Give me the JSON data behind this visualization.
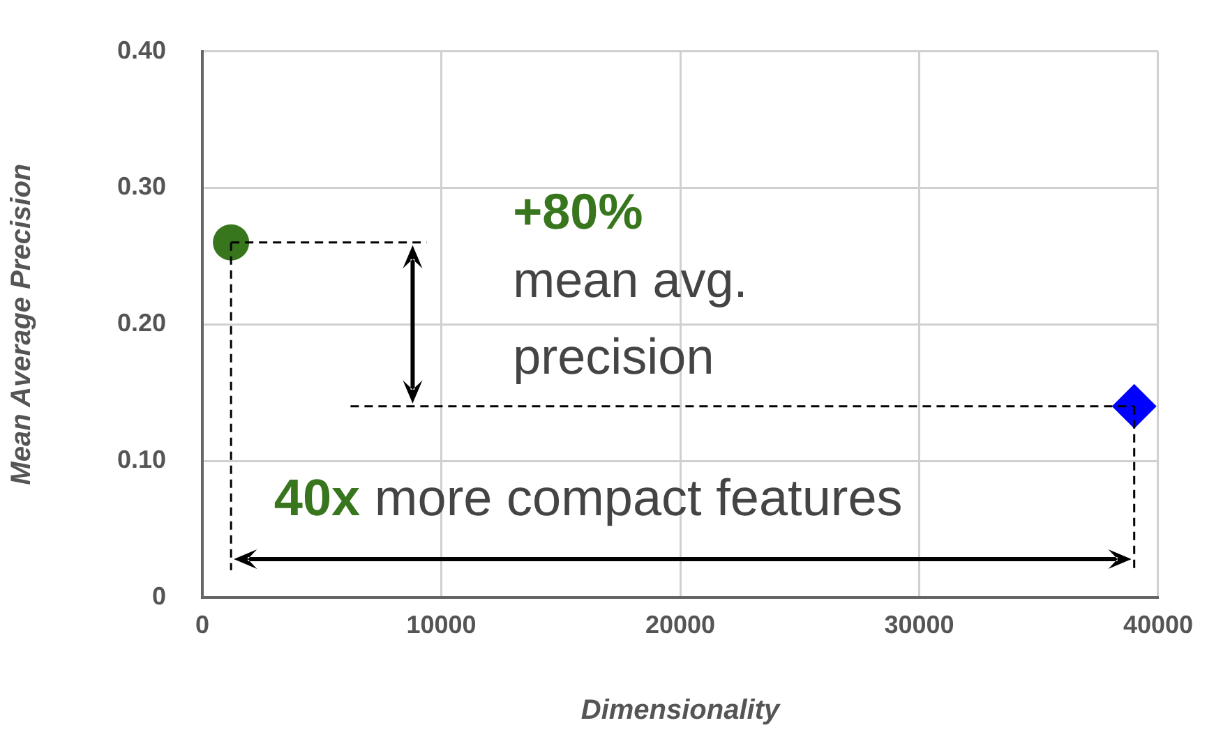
{
  "chart_data": {
    "type": "scatter",
    "xlabel": "Dimensionality",
    "ylabel": "Mean Average Precision",
    "series": [
      {
        "color": "#38761d",
        "x": [
          1200
        ],
        "values": [
          0.26
        ],
        "marker": "circle"
      },
      {
        "color": "#0000ff",
        "x": [
          39000
        ],
        "values": [
          0.14
        ],
        "marker": "diamond"
      }
    ],
    "xlim": [
      0,
      40000
    ],
    "xticks": [
      0,
      10000,
      20000,
      30000,
      40000
    ],
    "ylim": [
      0,
      0.4
    ],
    "yticks": [
      {
        "value": 0,
        "label": "0"
      },
      {
        "value": 0.1,
        "label": "0.10"
      },
      {
        "value": 0.2,
        "label": "0.20"
      },
      {
        "value": 0.3,
        "label": "0.30"
      },
      {
        "value": 0.4,
        "label": "0.40"
      }
    ],
    "ref_lines": [
      {
        "axis": "y",
        "value": 0.26,
        "color": "#000000",
        "line_style": "dashed"
      },
      {
        "axis": "y",
        "value": 0.14,
        "color": "#000000",
        "line_style": "dashed"
      },
      {
        "axis": "x",
        "value": 1200,
        "color": "#000000",
        "line_style": "dashed"
      },
      {
        "axis": "x",
        "value": 39000,
        "color": "#000000",
        "line_style": "dashed"
      }
    ],
    "grid": true,
    "legend": false,
    "annotations": [
      "+80%",
      "mean avg. precision",
      "40x",
      "more compact features"
    ]
  }
}
